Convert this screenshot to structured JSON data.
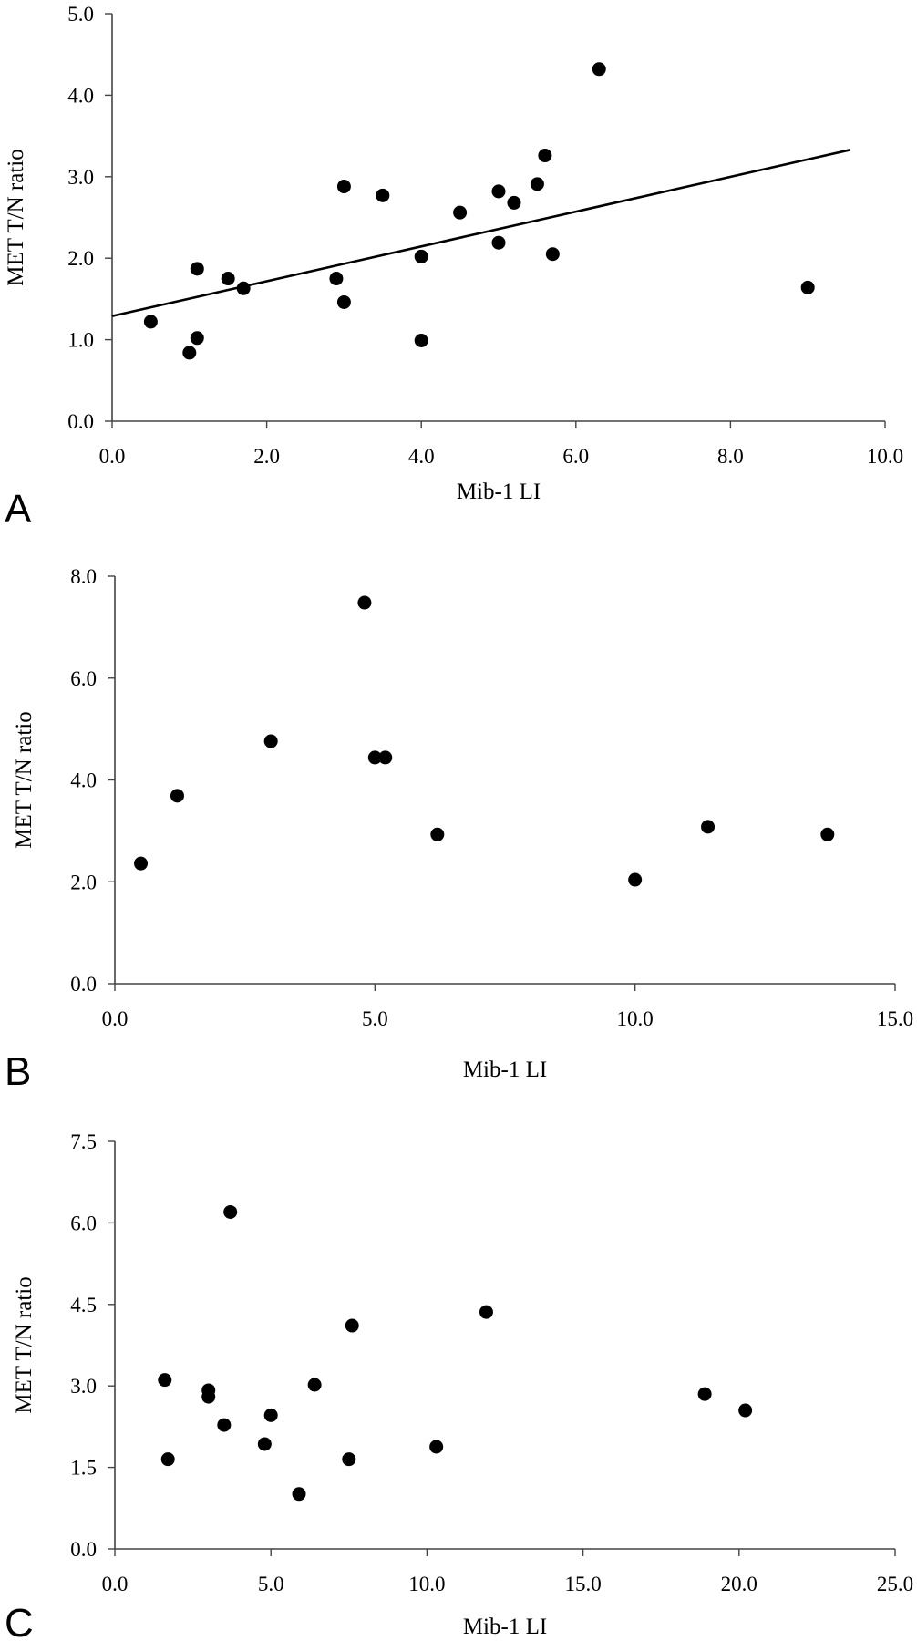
{
  "chart_data": [
    {
      "panel_label": "A",
      "type": "scatter",
      "xlabel": "Mib-1 LI",
      "ylabel": "MET T/N ratio",
      "xlim": [
        0,
        10
      ],
      "ylim": [
        0,
        5
      ],
      "xticks": [
        "0.0",
        "2.0",
        "4.0",
        "6.0",
        "8.0",
        "10.0"
      ],
      "yticks": [
        "0.0",
        "1.0",
        "2.0",
        "3.0",
        "4.0",
        "5.0"
      ],
      "grid": false,
      "trendline": {
        "x": [
          0.0,
          9.55
        ],
        "y": [
          1.29,
          3.33
        ]
      },
      "points": [
        {
          "x": 0.5,
          "y": 1.22
        },
        {
          "x": 1.0,
          "y": 0.84
        },
        {
          "x": 1.1,
          "y": 1.02
        },
        {
          "x": 1.1,
          "y": 1.87
        },
        {
          "x": 1.5,
          "y": 1.75
        },
        {
          "x": 1.7,
          "y": 1.63
        },
        {
          "x": 2.9,
          "y": 1.75
        },
        {
          "x": 3.0,
          "y": 1.46
        },
        {
          "x": 3.0,
          "y": 2.88
        },
        {
          "x": 3.5,
          "y": 2.77
        },
        {
          "x": 4.0,
          "y": 2.02
        },
        {
          "x": 4.0,
          "y": 0.99
        },
        {
          "x": 4.5,
          "y": 2.56
        },
        {
          "x": 5.0,
          "y": 2.82
        },
        {
          "x": 5.0,
          "y": 2.19
        },
        {
          "x": 5.2,
          "y": 2.68
        },
        {
          "x": 5.5,
          "y": 2.91
        },
        {
          "x": 5.6,
          "y": 3.26
        },
        {
          "x": 5.7,
          "y": 2.05
        },
        {
          "x": 6.3,
          "y": 4.32
        },
        {
          "x": 9.0,
          "y": 1.64
        }
      ]
    },
    {
      "panel_label": "B",
      "type": "scatter",
      "xlabel": "Mib-1 LI",
      "ylabel": "MET T/N ratio",
      "xlim": [
        0,
        15
      ],
      "ylim": [
        0,
        8
      ],
      "xticks": [
        "0.0",
        "5.0",
        "10.0",
        "15.0"
      ],
      "yticks": [
        "0.0",
        "2.0",
        "4.0",
        "6.0",
        "8.0"
      ],
      "grid": false,
      "points": [
        {
          "x": 0.5,
          "y": 2.36
        },
        {
          "x": 1.2,
          "y": 3.69
        },
        {
          "x": 3.0,
          "y": 4.76
        },
        {
          "x": 4.8,
          "y": 7.48
        },
        {
          "x": 5.0,
          "y": 4.44
        },
        {
          "x": 5.2,
          "y": 4.44
        },
        {
          "x": 6.2,
          "y": 2.93
        },
        {
          "x": 10.0,
          "y": 2.04
        },
        {
          "x": 11.4,
          "y": 3.08
        },
        {
          "x": 13.7,
          "y": 2.93
        }
      ]
    },
    {
      "panel_label": "C",
      "type": "scatter",
      "xlabel": "Mib-1 LI",
      "ylabel": "MET T/N ratio",
      "xlim": [
        0,
        25
      ],
      "ylim": [
        0,
        7.5
      ],
      "xticks": [
        "0.0",
        "5.0",
        "10.0",
        "15.0",
        "20.0",
        "25.0"
      ],
      "yticks": [
        "0.0",
        "1.5",
        "3.0",
        "4.5",
        "6.0",
        "7.5"
      ],
      "grid": false,
      "points": [
        {
          "x": 1.6,
          "y": 3.11
        },
        {
          "x": 1.7,
          "y": 1.65
        },
        {
          "x": 3.0,
          "y": 2.92
        },
        {
          "x": 3.0,
          "y": 2.8
        },
        {
          "x": 3.5,
          "y": 2.28
        },
        {
          "x": 3.7,
          "y": 6.2
        },
        {
          "x": 4.8,
          "y": 1.93
        },
        {
          "x": 5.0,
          "y": 2.46
        },
        {
          "x": 5.9,
          "y": 1.01
        },
        {
          "x": 6.4,
          "y": 3.02
        },
        {
          "x": 7.5,
          "y": 1.65
        },
        {
          "x": 7.6,
          "y": 4.11
        },
        {
          "x": 10.3,
          "y": 1.88
        },
        {
          "x": 11.9,
          "y": 4.36
        },
        {
          "x": 18.9,
          "y": 2.85
        },
        {
          "x": 20.2,
          "y": 2.55
        }
      ]
    }
  ]
}
